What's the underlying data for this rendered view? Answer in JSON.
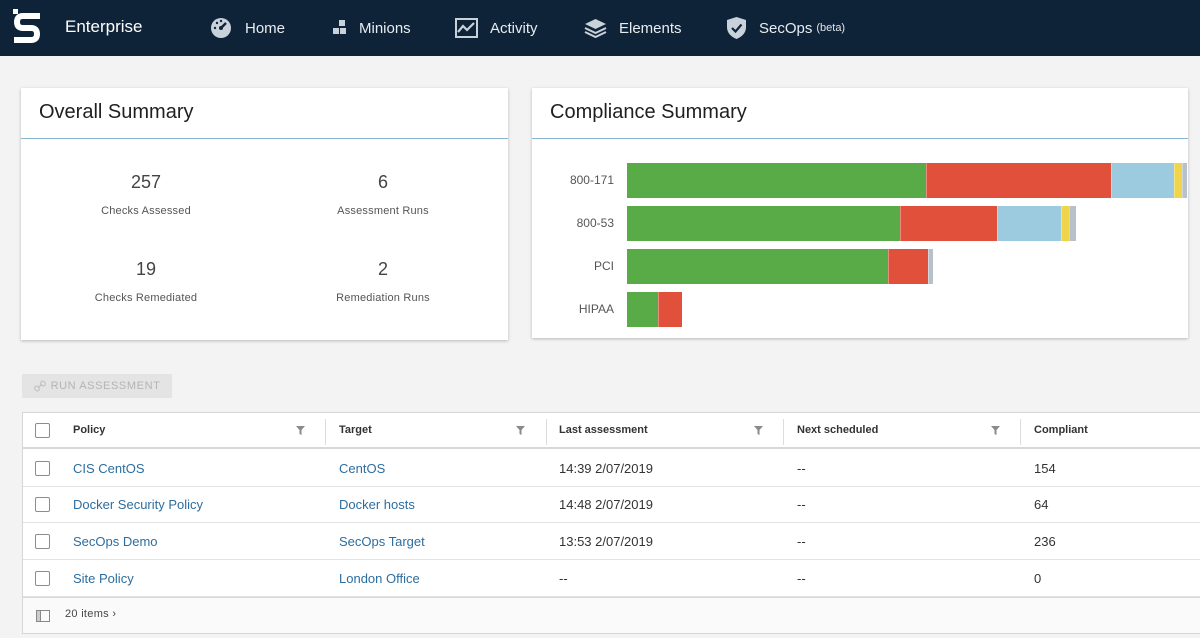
{
  "nav": {
    "brand": "Enterprise",
    "items": [
      {
        "icon": "dashboard-gauge-icon",
        "label": "Home"
      },
      {
        "icon": "minions-blocks-icon",
        "label": "Minions"
      },
      {
        "icon": "activity-chart-icon",
        "label": "Activity"
      },
      {
        "icon": "layers-stack-icon",
        "label": "Elements"
      },
      {
        "icon": "shield-check-icon",
        "label": "SecOps",
        "badge": "(beta)"
      }
    ]
  },
  "overall": {
    "title": "Overall Summary",
    "stats": [
      {
        "value": "257",
        "label": "Checks Assessed"
      },
      {
        "value": "6",
        "label": "Assessment Runs"
      },
      {
        "value": "19",
        "label": "Checks Remediated"
      },
      {
        "value": "2",
        "label": "Remediation Runs"
      }
    ]
  },
  "compliance": {
    "title": "Compliance Summary",
    "colors": {
      "compliant": "#58ab47",
      "noncompliant": "#e1503a",
      "notapplicable": "#9ccbe0",
      "error": "#f0d54b",
      "other": "#b8c1c9"
    },
    "chart_data": {
      "type": "bar",
      "orientation": "horizontal",
      "stacked": true,
      "categories": [
        "800-171",
        "800-53",
        "PCI",
        "HIPAA"
      ],
      "series": [
        {
          "key": "compliant",
          "values": [
            300,
            274,
            262,
            31
          ]
        },
        {
          "key": "noncompliant",
          "values": [
            186,
            97,
            40,
            24
          ]
        },
        {
          "key": "notapplicable",
          "values": [
            63,
            65,
            0,
            0
          ]
        },
        {
          "key": "error",
          "values": [
            8,
            8,
            0,
            0
          ]
        },
        {
          "key": "other",
          "values": [
            5,
            7,
            5,
            0
          ]
        }
      ],
      "xlim": [
        0,
        562
      ],
      "grid": false,
      "legend": "none"
    }
  },
  "toolbar": {
    "run_label": "RUN ASSESSMENT"
  },
  "table": {
    "columns": [
      "Policy",
      "Target",
      "Last assessment",
      "Next scheduled",
      "Compliant"
    ],
    "rows": [
      {
        "policy": "CIS CentOS",
        "target": "CentOS",
        "last": "14:39 2/07/2019",
        "next": "--",
        "compliant": "154"
      },
      {
        "policy": "Docker Security Policy",
        "target": "Docker hosts",
        "last": "14:48 2/07/2019",
        "next": "--",
        "compliant": "64"
      },
      {
        "policy": "SecOps Demo",
        "target": "SecOps Target",
        "last": "13:53 2/07/2019",
        "next": "--",
        "compliant": "236"
      },
      {
        "policy": "Site Policy",
        "target": "London Office",
        "last": "--",
        "next": "--",
        "compliant": "0"
      }
    ],
    "footer": "20 items ›"
  }
}
